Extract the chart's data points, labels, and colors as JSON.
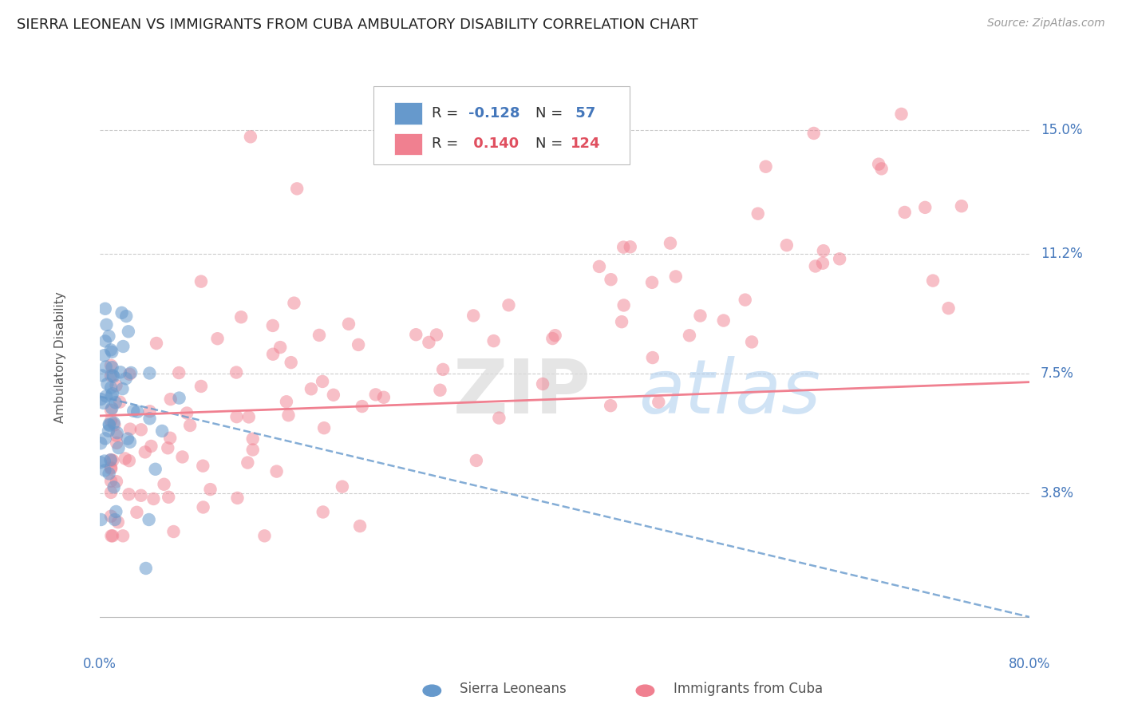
{
  "title": "SIERRA LEONEAN VS IMMIGRANTS FROM CUBA AMBULATORY DISABILITY CORRELATION CHART",
  "source": "Source: ZipAtlas.com",
  "ylabel": "Ambulatory Disability",
  "xlim": [
    0.0,
    0.8
  ],
  "ylim": [
    -0.01,
    0.17
  ],
  "yticks": [
    0.038,
    0.075,
    0.112,
    0.15
  ],
  "ytick_labels": [
    "3.8%",
    "7.5%",
    "11.2%",
    "15.0%"
  ],
  "xticks": [
    0.0,
    0.1,
    0.2,
    0.3,
    0.4,
    0.5,
    0.6,
    0.7,
    0.8
  ],
  "xtick_labels": [
    "0.0%",
    "",
    "",
    "",
    "",
    "",
    "",
    "",
    "80.0%"
  ],
  "sierra_R": -0.128,
  "sierra_N": 57,
  "cuba_R": 0.14,
  "cuba_N": 124,
  "sierra_color": "#6699CC",
  "cuba_color": "#F08090",
  "background_color": "#FFFFFF",
  "grid_color": "#CCCCCC",
  "axis_color": "#4477BB",
  "watermark": "ZIPatlas",
  "title_fontsize": 13,
  "label_fontsize": 11,
  "tick_label_fontsize": 12,
  "legend_fontsize": 13
}
